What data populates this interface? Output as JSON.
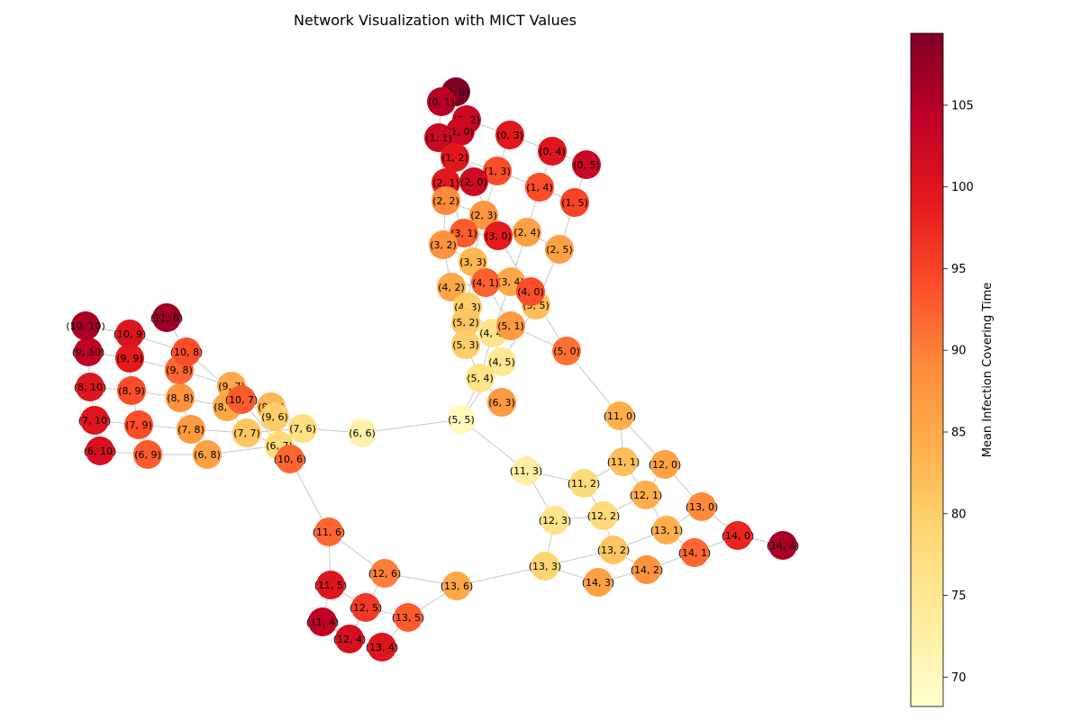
{
  "chart_data": {
    "type": "network",
    "title": "Network Visualization with MICT Values",
    "colorbar": {
      "label": "Mean Infection Covering Time",
      "colormap": "YlOrRd",
      "vmin": 68.2,
      "vmax": 109.4,
      "ticks": [
        70,
        75,
        80,
        85,
        90,
        95,
        100,
        105
      ]
    },
    "nodes": [
      {
        "label": "(0, 0)",
        "value": 109.2
      },
      {
        "label": "(0, 1)",
        "value": 104.5
      },
      {
        "label": "(0, 2)",
        "value": 102.5
      },
      {
        "label": "(1, 0)",
        "value": 102.5
      },
      {
        "label": "(1, 1)",
        "value": 102.5
      },
      {
        "label": "(0, 3)",
        "value": 99.5
      },
      {
        "label": "(0, 4)",
        "value": 100.0
      },
      {
        "label": "(0, 5)",
        "value": 102.5
      },
      {
        "label": "(1, 2)",
        "value": 99.5
      },
      {
        "label": "(1, 3)",
        "value": 94.0
      },
      {
        "label": "(1, 4)",
        "value": 94.0
      },
      {
        "label": "(1, 5)",
        "value": 95.0
      },
      {
        "label": "(2, 0)",
        "value": 102.0
      },
      {
        "label": "(2, 1)",
        "value": 99.5
      },
      {
        "label": "(2, 2)",
        "value": 89.0
      },
      {
        "label": "(2, 3)",
        "value": 87.5
      },
      {
        "label": "(2, 4)",
        "value": 86.0
      },
      {
        "label": "(2, 5)",
        "value": 86.0
      },
      {
        "label": "(3, 0)",
        "value": 99.0
      },
      {
        "label": "(3, 1)",
        "value": 93.0
      },
      {
        "label": "(3, 2)",
        "value": 88.0
      },
      {
        "label": "(3, 3)",
        "value": 83.0
      },
      {
        "label": "(3, 4)",
        "value": 85.0
      },
      {
        "label": "(3, 5)",
        "value": 82.0
      },
      {
        "label": "(4, 0)",
        "value": 94.0
      },
      {
        "label": "(4, 1)",
        "value": 92.5
      },
      {
        "label": "(4, 2)",
        "value": 85.0
      },
      {
        "label": "(4, 3)",
        "value": 80.0
      },
      {
        "label": "(4, 4)",
        "value": 76.0
      },
      {
        "label": "(4, 5)",
        "value": 75.0
      },
      {
        "label": "(5, 0)",
        "value": 91.0
      },
      {
        "label": "(5, 1)",
        "value": 87.0
      },
      {
        "label": "(5, 2)",
        "value": 81.0
      },
      {
        "label": "(5, 3)",
        "value": 80.0
      },
      {
        "label": "(5, 4)",
        "value": 76.0
      },
      {
        "label": "(5, 5)",
        "value": 70.0
      },
      {
        "label": "(6, 3)",
        "value": 87.0
      },
      {
        "label": "(6, 6)",
        "value": 72.0
      },
      {
        "label": "(6, 7)",
        "value": 78.0
      },
      {
        "label": "(6, 8)",
        "value": 86.0
      },
      {
        "label": "(6, 9)",
        "value": 93.0
      },
      {
        "label": "(6, 10)",
        "value": 101.0
      },
      {
        "label": "(7, 6)",
        "value": 77.0
      },
      {
        "label": "(7, 7)",
        "value": 81.0
      },
      {
        "label": "(7, 8)",
        "value": 87.0
      },
      {
        "label": "(7, 9)",
        "value": 94.0
      },
      {
        "label": "(7, 10)",
        "value": 100.0
      },
      {
        "label": "(8, 6)",
        "value": 83.0
      },
      {
        "label": "(8, 7)",
        "value": 85.0
      },
      {
        "label": "(8, 8)",
        "value": 88.0
      },
      {
        "label": "(8, 9)",
        "value": 94.0
      },
      {
        "label": "(8, 10)",
        "value": 100.0
      },
      {
        "label": "(9, 6)",
        "value": 80.0
      },
      {
        "label": "(9, 7)",
        "value": 85.0
      },
      {
        "label": "(9, 8)",
        "value": 92.0
      },
      {
        "label": "(9, 9)",
        "value": 99.0
      },
      {
        "label": "(9, 10)",
        "value": 104.0
      },
      {
        "label": "(10, 6)",
        "value": 92.0
      },
      {
        "label": "(10, 7)",
        "value": 93.0
      },
      {
        "label": "(10, 8)",
        "value": 94.0
      },
      {
        "label": "(10, 9)",
        "value": 100.0
      },
      {
        "label": "(10, 10)",
        "value": 106.0
      },
      {
        "label": "(11, 8)",
        "value": 107.0
      },
      {
        "label": "(11, 0)",
        "value": 84.0
      },
      {
        "label": "(11, 1)",
        "value": 82.0
      },
      {
        "label": "(11, 2)",
        "value": 78.0
      },
      {
        "label": "(11, 3)",
        "value": 73.0
      },
      {
        "label": "(11, 4)",
        "value": 104.0
      },
      {
        "label": "(11, 5)",
        "value": 100.0
      },
      {
        "label": "(11, 6)",
        "value": 92.0
      },
      {
        "label": "(12, 0)",
        "value": 86.0
      },
      {
        "label": "(12, 1)",
        "value": 84.0
      },
      {
        "label": "(12, 2)",
        "value": 78.0
      },
      {
        "label": "(12, 3)",
        "value": 76.0
      },
      {
        "label": "(12, 4)",
        "value": 101.0
      },
      {
        "label": "(12, 5)",
        "value": 96.0
      },
      {
        "label": "(12, 6)",
        "value": 90.0
      },
      {
        "label": "(13, 0)",
        "value": 89.0
      },
      {
        "label": "(13, 1)",
        "value": 84.0
      },
      {
        "label": "(13, 2)",
        "value": 81.0
      },
      {
        "label": "(13, 3)",
        "value": 79.0
      },
      {
        "label": "(13, 4)",
        "value": 100.0
      },
      {
        "label": "(13, 5)",
        "value": 93.0
      },
      {
        "label": "(13, 6)",
        "value": 85.0
      },
      {
        "label": "(14, 0)",
        "value": 98.0
      },
      {
        "label": "(14, 1)",
        "value": 92.0
      },
      {
        "label": "(14, 2)",
        "value": 88.0
      },
      {
        "label": "(14, 3)",
        "value": 86.0
      },
      {
        "label": "(14, 4)",
        "value": 106.0
      }
    ],
    "edges": [
      [
        "(0, 0)",
        "(0, 1)"
      ],
      [
        "(0, 0)",
        "(1, 0)"
      ],
      [
        "(0, 1)",
        "(0, 2)"
      ],
      [
        "(0, 1)",
        "(1, 1)"
      ],
      [
        "(0, 2)",
        "(0, 3)"
      ],
      [
        "(0, 2)",
        "(1, 2)"
      ],
      [
        "(0, 3)",
        "(0, 4)"
      ],
      [
        "(0, 3)",
        "(1, 3)"
      ],
      [
        "(0, 4)",
        "(0, 5)"
      ],
      [
        "(0, 4)",
        "(1, 4)"
      ],
      [
        "(0, 5)",
        "(1, 5)"
      ],
      [
        "(1, 0)",
        "(1, 1)"
      ],
      [
        "(1, 0)",
        "(2, 0)"
      ],
      [
        "(1, 1)",
        "(1, 2)"
      ],
      [
        "(1, 1)",
        "(2, 1)"
      ],
      [
        "(1, 2)",
        "(1, 3)"
      ],
      [
        "(1, 2)",
        "(2, 2)"
      ],
      [
        "(1, 3)",
        "(1, 4)"
      ],
      [
        "(1, 3)",
        "(2, 3)"
      ],
      [
        "(1, 4)",
        "(1, 5)"
      ],
      [
        "(1, 4)",
        "(2, 4)"
      ],
      [
        "(1, 5)",
        "(2, 5)"
      ],
      [
        "(2, 0)",
        "(2, 1)"
      ],
      [
        "(2, 0)",
        "(3, 0)"
      ],
      [
        "(2, 1)",
        "(2, 2)"
      ],
      [
        "(2, 1)",
        "(3, 1)"
      ],
      [
        "(2, 2)",
        "(2, 3)"
      ],
      [
        "(2, 2)",
        "(3, 2)"
      ],
      [
        "(2, 3)",
        "(2, 4)"
      ],
      [
        "(2, 3)",
        "(3, 3)"
      ],
      [
        "(2, 4)",
        "(2, 5)"
      ],
      [
        "(2, 4)",
        "(3, 4)"
      ],
      [
        "(2, 5)",
        "(3, 5)"
      ],
      [
        "(3, 0)",
        "(3, 1)"
      ],
      [
        "(3, 0)",
        "(4, 0)"
      ],
      [
        "(3, 1)",
        "(3, 2)"
      ],
      [
        "(3, 1)",
        "(4, 1)"
      ],
      [
        "(3, 2)",
        "(3, 3)"
      ],
      [
        "(3, 2)",
        "(4, 2)"
      ],
      [
        "(3, 3)",
        "(3, 4)"
      ],
      [
        "(3, 3)",
        "(4, 3)"
      ],
      [
        "(3, 4)",
        "(3, 5)"
      ],
      [
        "(3, 4)",
        "(4, 4)"
      ],
      [
        "(3, 5)",
        "(4, 5)"
      ],
      [
        "(4, 0)",
        "(4, 1)"
      ],
      [
        "(4, 0)",
        "(5, 0)"
      ],
      [
        "(4, 1)",
        "(4, 2)"
      ],
      [
        "(4, 1)",
        "(5, 1)"
      ],
      [
        "(4, 2)",
        "(4, 3)"
      ],
      [
        "(4, 2)",
        "(5, 2)"
      ],
      [
        "(4, 3)",
        "(4, 4)"
      ],
      [
        "(4, 3)",
        "(5, 3)"
      ],
      [
        "(4, 4)",
        "(4, 5)"
      ],
      [
        "(4, 4)",
        "(5, 4)"
      ],
      [
        "(4, 5)",
        "(5, 5)"
      ],
      [
        "(5, 0)",
        "(5, 1)"
      ],
      [
        "(5, 0)",
        "(11, 0)"
      ],
      [
        "(5, 1)",
        "(5, 2)"
      ],
      [
        "(5, 2)",
        "(5, 3)"
      ],
      [
        "(5, 3)",
        "(5, 4)"
      ],
      [
        "(5, 4)",
        "(5, 5)"
      ],
      [
        "(5, 4)",
        "(6, 3)"
      ],
      [
        "(5, 5)",
        "(6, 6)"
      ],
      [
        "(5, 5)",
        "(11, 3)"
      ],
      [
        "(6, 6)",
        "(7, 6)"
      ],
      [
        "(6, 7)",
        "(7, 6)"
      ],
      [
        "(6, 7)",
        "(6, 8)"
      ],
      [
        "(6, 7)",
        "(7, 7)"
      ],
      [
        "(6, 7)",
        "(10, 6)"
      ],
      [
        "(6, 8)",
        "(6, 9)"
      ],
      [
        "(6, 8)",
        "(7, 8)"
      ],
      [
        "(6, 9)",
        "(6, 10)"
      ],
      [
        "(6, 9)",
        "(7, 9)"
      ],
      [
        "(6, 10)",
        "(7, 10)"
      ],
      [
        "(7, 6)",
        "(8, 6)"
      ],
      [
        "(7, 6)",
        "(7, 7)"
      ],
      [
        "(7, 7)",
        "(7, 8)"
      ],
      [
        "(7, 7)",
        "(8, 7)"
      ],
      [
        "(7, 8)",
        "(7, 9)"
      ],
      [
        "(7, 8)",
        "(8, 8)"
      ],
      [
        "(7, 9)",
        "(7, 10)"
      ],
      [
        "(7, 9)",
        "(8, 9)"
      ],
      [
        "(7, 10)",
        "(8, 10)"
      ],
      [
        "(8, 6)",
        "(8, 7)"
      ],
      [
        "(8, 6)",
        "(9, 6)"
      ],
      [
        "(8, 7)",
        "(8, 8)"
      ],
      [
        "(8, 7)",
        "(9, 7)"
      ],
      [
        "(8, 8)",
        "(8, 9)"
      ],
      [
        "(8, 8)",
        "(9, 8)"
      ],
      [
        "(8, 9)",
        "(8, 10)"
      ],
      [
        "(8, 9)",
        "(9, 9)"
      ],
      [
        "(8, 10)",
        "(9, 10)"
      ],
      [
        "(9, 6)",
        "(9, 7)"
      ],
      [
        "(9, 6)",
        "(10, 6)"
      ],
      [
        "(9, 7)",
        "(9, 8)"
      ],
      [
        "(9, 7)",
        "(10, 7)"
      ],
      [
        "(9, 8)",
        "(9, 9)"
      ],
      [
        "(9, 8)",
        "(10, 8)"
      ],
      [
        "(9, 9)",
        "(9, 10)"
      ],
      [
        "(9, 9)",
        "(10, 9)"
      ],
      [
        "(9, 10)",
        "(10, 10)"
      ],
      [
        "(10, 6)",
        "(10, 7)"
      ],
      [
        "(10, 6)",
        "(11, 6)"
      ],
      [
        "(10, 7)",
        "(10, 8)"
      ],
      [
        "(10, 8)",
        "(10, 9)"
      ],
      [
        "(10, 8)",
        "(11, 8)"
      ],
      [
        "(10, 9)",
        "(10, 10)"
      ],
      [
        "(11, 0)",
        "(11, 1)"
      ],
      [
        "(11, 0)",
        "(12, 0)"
      ],
      [
        "(11, 1)",
        "(11, 2)"
      ],
      [
        "(11, 1)",
        "(12, 1)"
      ],
      [
        "(11, 2)",
        "(11, 3)"
      ],
      [
        "(11, 2)",
        "(12, 2)"
      ],
      [
        "(11, 3)",
        "(12, 3)"
      ],
      [
        "(11, 4)",
        "(11, 5)"
      ],
      [
        "(11, 4)",
        "(12, 4)"
      ],
      [
        "(11, 5)",
        "(11, 6)"
      ],
      [
        "(11, 5)",
        "(12, 5)"
      ],
      [
        "(11, 6)",
        "(12, 6)"
      ],
      [
        "(12, 0)",
        "(12, 1)"
      ],
      [
        "(12, 0)",
        "(13, 0)"
      ],
      [
        "(12, 1)",
        "(12, 2)"
      ],
      [
        "(12, 1)",
        "(13, 1)"
      ],
      [
        "(12, 2)",
        "(12, 3)"
      ],
      [
        "(12, 2)",
        "(13, 2)"
      ],
      [
        "(12, 3)",
        "(13, 3)"
      ],
      [
        "(12, 4)",
        "(12, 5)"
      ],
      [
        "(12, 4)",
        "(13, 4)"
      ],
      [
        "(12, 5)",
        "(12, 6)"
      ],
      [
        "(12, 5)",
        "(13, 5)"
      ],
      [
        "(12, 6)",
        "(13, 6)"
      ],
      [
        "(13, 0)",
        "(13, 1)"
      ],
      [
        "(13, 0)",
        "(14, 0)"
      ],
      [
        "(13, 1)",
        "(13, 2)"
      ],
      [
        "(13, 1)",
        "(14, 1)"
      ],
      [
        "(13, 2)",
        "(13, 3)"
      ],
      [
        "(13, 2)",
        "(14, 2)"
      ],
      [
        "(13, 3)",
        "(13, 6)"
      ],
      [
        "(13, 3)",
        "(14, 3)"
      ],
      [
        "(13, 4)",
        "(13, 5)"
      ],
      [
        "(13, 5)",
        "(13, 6)"
      ],
      [
        "(14, 0)",
        "(14, 1)"
      ],
      [
        "(14, 0)",
        "(14, 4)"
      ],
      [
        "(14, 1)",
        "(14, 2)"
      ],
      [
        "(14, 2)",
        "(14, 3)"
      ]
    ]
  }
}
